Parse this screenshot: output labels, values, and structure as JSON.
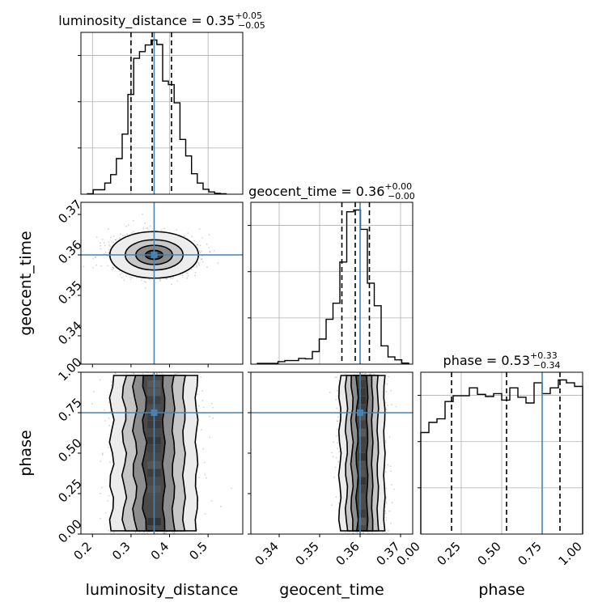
{
  "chart_data": {
    "type": "corner",
    "parameters": [
      "luminosity_distance",
      "geocent_time",
      "phase"
    ],
    "truths": {
      "luminosity_distance": 0.36,
      "geocent_time": 0.36,
      "phase": 0.75
    },
    "titles": [
      {
        "param": "luminosity_distance",
        "prefix": "luminosity_distance = 0.35",
        "plus": "+0.05",
        "minus": "−0.05"
      },
      {
        "param": "geocent_time",
        "prefix": "geocent_time = 0.36",
        "plus": "+0.00",
        "minus": "−0.00"
      },
      {
        "param": "phase",
        "prefix": "phase = 0.53",
        "plus": "+0.33",
        "minus": "−0.34"
      }
    ],
    "ranges": {
      "luminosity_distance": [
        0.17,
        0.59
      ],
      "geocent_time": [
        0.333,
        0.373
      ],
      "phase": [
        0.0,
        1.0
      ]
    },
    "axis_ticks": {
      "luminosity_distance": [
        "0.2",
        "0.3",
        "0.4",
        "0.5"
      ],
      "geocent_time": [
        "0.34",
        "0.35",
        "0.36",
        "0.37"
      ],
      "phase": [
        "0.00",
        "0.25",
        "0.50",
        "0.75",
        "1.00"
      ]
    },
    "quantiles": {
      "luminosity_distance": [
        0.3,
        0.355,
        0.405
      ],
      "geocent_time": [
        0.3555,
        0.3588,
        0.3623
      ],
      "phase": [
        0.19,
        0.53,
        0.86
      ]
    },
    "histograms": {
      "luminosity_distance": {
        "edges": [
          0.187,
          0.202,
          0.217,
          0.232,
          0.247,
          0.262,
          0.277,
          0.292,
          0.307,
          0.322,
          0.337,
          0.352,
          0.367,
          0.382,
          0.397,
          0.412,
          0.427,
          0.442,
          0.457,
          0.472,
          0.487,
          0.502,
          0.517,
          0.532,
          0.547
        ],
        "counts": [
          1,
          10,
          10,
          25,
          44,
          80,
          135,
          224,
          305,
          320,
          335,
          346,
          336,
          254,
          246,
          205,
          123,
          86,
          46,
          25,
          11,
          5,
          2,
          1
        ]
      },
      "geocent_time": {
        "edges": [
          0.3346,
          0.3363,
          0.338,
          0.3397,
          0.3414,
          0.3431,
          0.3448,
          0.3465,
          0.3482,
          0.3499,
          0.3516,
          0.3533,
          0.355,
          0.3567,
          0.3584,
          0.3601,
          0.3618,
          0.3635,
          0.3652,
          0.3669,
          0.3686,
          0.3703,
          0.372
        ],
        "counts": [
          2,
          2,
          2,
          7,
          10,
          10,
          16,
          15,
          35,
          70,
          125,
          170,
          285,
          425,
          430,
          376,
          226,
          163,
          51,
          20,
          12,
          3
        ]
      },
      "phase": {
        "edges": [
          0.0,
          0.05,
          0.1,
          0.15,
          0.2,
          0.25,
          0.3,
          0.35,
          0.4,
          0.45,
          0.5,
          0.55,
          0.6,
          0.65,
          0.7,
          0.75,
          0.8,
          0.85,
          0.9,
          0.95,
          1.0
        ],
        "counts": [
          141,
          155,
          160,
          184,
          192,
          192,
          203,
          194,
          191,
          195,
          186,
          203,
          190,
          182,
          210,
          195,
          203,
          214,
          210,
          205
        ]
      }
    },
    "medians_2d": [
      {
        "x": "luminosity_distance",
        "y": "geocent_time",
        "x_value": 0.36,
        "y_value": 0.36
      },
      {
        "x": "luminosity_distance",
        "y": "phase",
        "x_value": 0.36,
        "y_value": 0.75
      },
      {
        "x": "geocent_time",
        "y": "phase",
        "x_value": 0.3605,
        "y_value": 0.75
      }
    ],
    "grid": true,
    "colors": {
      "truth": "#4682b4",
      "hist": "#000000",
      "points": "#808080"
    }
  }
}
